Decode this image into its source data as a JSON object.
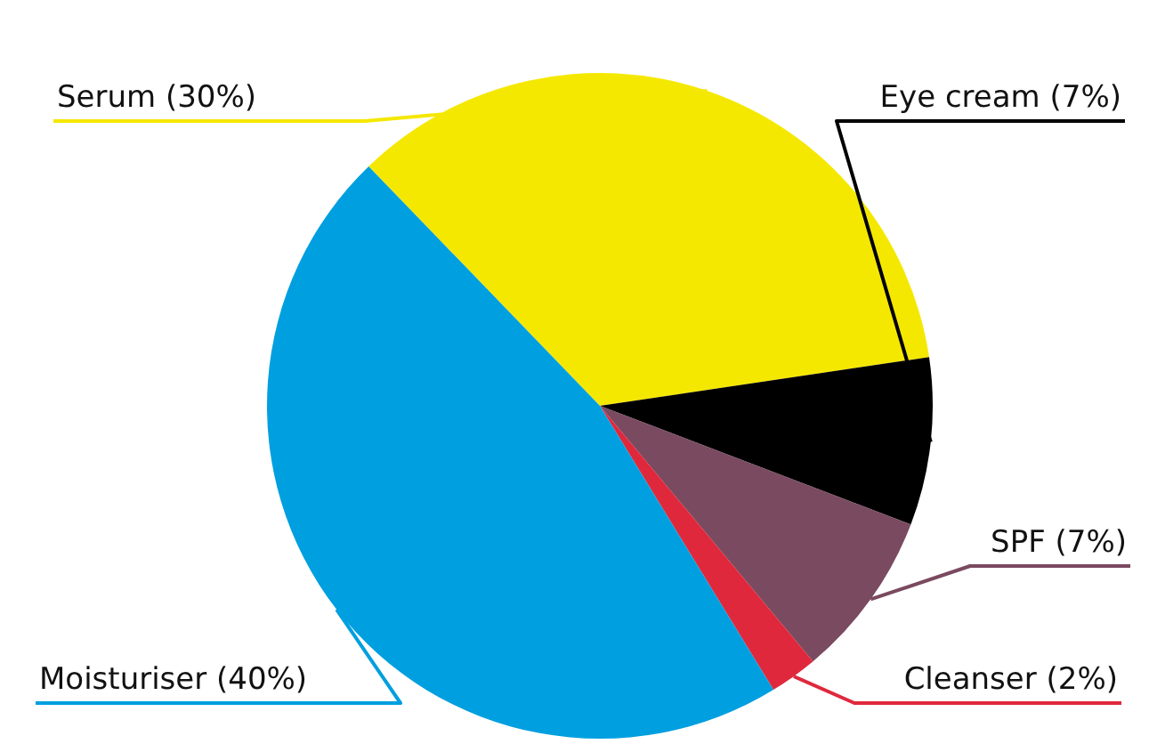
{
  "chart_data": {
    "type": "pie",
    "categories": [
      "Serum (30%)",
      "Eye cream (7%)",
      "SPF (7%)",
      "Cleanser (2%)",
      "Moisturiser (40%)"
    ],
    "values": [
      30,
      7,
      7,
      2,
      40
    ],
    "colors": [
      "#f5e800",
      "#000000",
      "#7a4a60",
      "#e0283c",
      "#009fdf"
    ],
    "legend": false
  }
}
